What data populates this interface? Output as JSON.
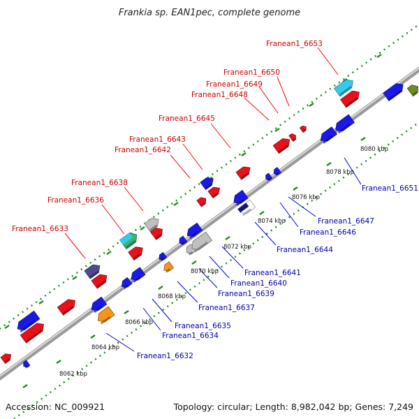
{
  "title": "Frankia sp. EAN1pec, complete genome",
  "footer": {
    "accession": "Accession: NC_009921",
    "summary": "Topology: circular; Length: 8,982,042 bp; Genes: 7,249"
  },
  "colors": {
    "label_top": "#cc0000",
    "label_bottom": "#0000aa",
    "axis": "#888888",
    "ticks": "#228b22"
  },
  "scale": {
    "labels": [
      "8062 kbp",
      "8064 kbp",
      "8066 kbp",
      "8068 kbp",
      "8070 kbp",
      "8072 kbp",
      "8074 kbp",
      "8076 kbp",
      "8078 kbp",
      "8080 kbp"
    ]
  },
  "genes_top": [
    {
      "label": "Franean1_6633",
      "color": "#4b4b8f"
    },
    {
      "label": "Franean1_6636",
      "color": "#3cb371"
    },
    {
      "label": "Franean1_6638",
      "color": "#c0c0c0"
    },
    {
      "label": "Franean1_6642",
      "color": "#e8111a"
    },
    {
      "label": "Franean1_6643",
      "color": "#1a1ae6"
    },
    {
      "label": "Franean1_6645",
      "color": "#e8111a"
    },
    {
      "label": "Franean1_6648",
      "color": "#e8111a"
    },
    {
      "label": "Franean1_6649",
      "color": "#e8111a"
    },
    {
      "label": "Franean1_6650",
      "color": "#e8111a"
    },
    {
      "label": "Franean1_6653",
      "color": "#33ccee"
    }
  ],
  "genes_bottom": [
    {
      "label": "Franean1_6632",
      "color": "#f7941d"
    },
    {
      "label": "Franean1_6634",
      "color": "#1a1ae6"
    },
    {
      "label": "Franean1_6635",
      "color": "#1a1ae6"
    },
    {
      "label": "Franean1_6637",
      "color": "#1a1ae6"
    },
    {
      "label": "Franean1_6639",
      "color": "#f7941d"
    },
    {
      "label": "Franean1_6640",
      "color": "#c0c0c0"
    },
    {
      "label": "Franean1_6641",
      "color": "#1a1ae6"
    },
    {
      "label": "Franean1_6644",
      "color": "#1a1ae6"
    },
    {
      "label": "Franean1_6646",
      "color": "#1a1ae6"
    },
    {
      "label": "Franean1_6647",
      "color": "#1a1ae6"
    },
    {
      "label": "Franean1_6651",
      "color": "#1a1ae6"
    }
  ]
}
